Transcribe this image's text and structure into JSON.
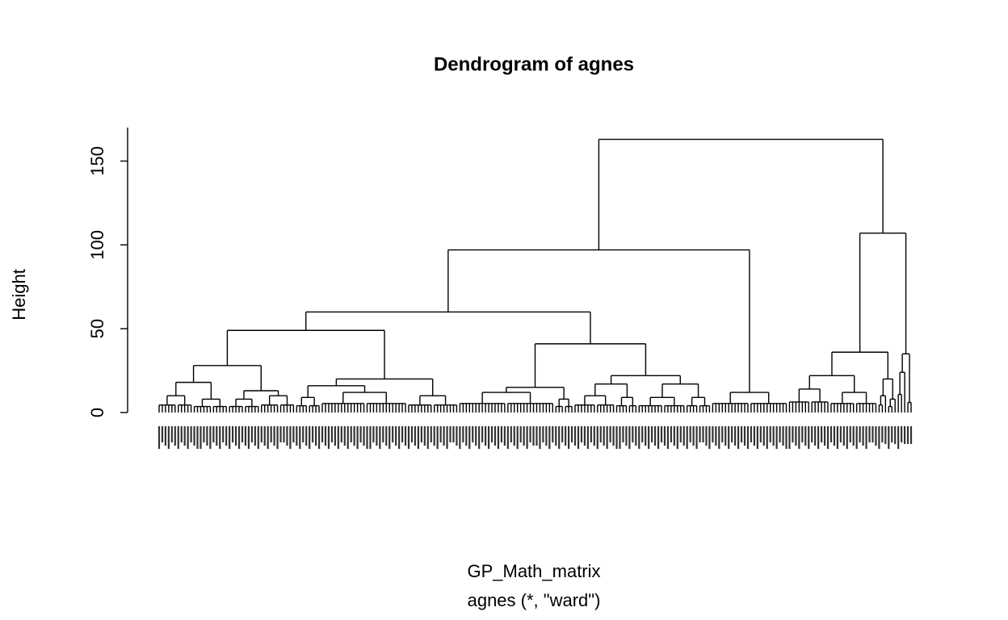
{
  "chart_data": {
    "type": "dendrogram",
    "title": "Dendrogram of agnes",
    "ylabel": "Height",
    "xlabel": "GP_Math_matrix",
    "subtitle": "agnes (*, \"ward\")",
    "ylim": [
      0,
      170
    ],
    "yticks": [
      0,
      50,
      100,
      150
    ],
    "color": "#000000",
    "tree": {
      "height": 163,
      "children": [
        {
          "height": 97,
          "children": [
            {
              "height": 60,
              "children": [
                {
                  "height": 49,
                  "children": [
                    {
                      "height": 28,
                      "children": [
                        {
                          "height": 18,
                          "children": [
                            {
                              "height": 10,
                              "leaves": 11
                            },
                            {
                              "height": 8,
                              "leaves": 11
                            }
                          ]
                        },
                        {
                          "height": 13,
                          "children": [
                            {
                              "height": 8,
                              "leaves": 10
                            },
                            {
                              "height": 10,
                              "leaves": 11
                            }
                          ]
                        }
                      ]
                    },
                    {
                      "height": 20,
                      "children": [
                        {
                          "height": 16,
                          "children": [
                            {
                              "height": 9,
                              "leaves": 8
                            },
                            {
                              "height": 12,
                              "leaves": 27
                            }
                          ]
                        },
                        {
                          "height": 10,
                          "leaves": 16
                        }
                      ]
                    }
                  ]
                },
                {
                  "height": 41,
                  "children": [
                    {
                      "height": 15,
                      "children": [
                        {
                          "height": 12,
                          "leaves": 30
                        },
                        {
                          "height": 8,
                          "leaves": 6
                        }
                      ]
                    },
                    {
                      "height": 22,
                      "children": [
                        {
                          "height": 17,
                          "children": [
                            {
                              "height": 10,
                              "leaves": 13
                            },
                            {
                              "height": 9,
                              "leaves": 7
                            }
                          ]
                        },
                        {
                          "height": 17,
                          "children": [
                            {
                              "height": 9,
                              "leaves": 15
                            },
                            {
                              "height": 9,
                              "leaves": 8
                            }
                          ]
                        }
                      ]
                    }
                  ]
                }
              ]
            },
            {
              "height": 12,
              "leaves": 24
            }
          ]
        },
        {
          "height": 107,
          "children": [
            {
              "height": 36,
              "children": [
                {
                  "height": 22,
                  "children": [
                    {
                      "height": 14,
                      "leaves": 13
                    },
                    {
                      "height": 12,
                      "leaves": 15
                    }
                  ]
                },
                {
                  "height": 20,
                  "children": [
                    {
                      "height": 10,
                      "leaves": 3
                    },
                    {
                      "height": 8,
                      "leaves": 3
                    }
                  ]
                }
              ]
            },
            {
              "height": 35,
              "children": [
                {
                  "height": 24,
                  "leaves": 3
                },
                {
                  "height": 6,
                  "leaves": 2
                }
              ]
            }
          ]
        }
      ]
    }
  }
}
